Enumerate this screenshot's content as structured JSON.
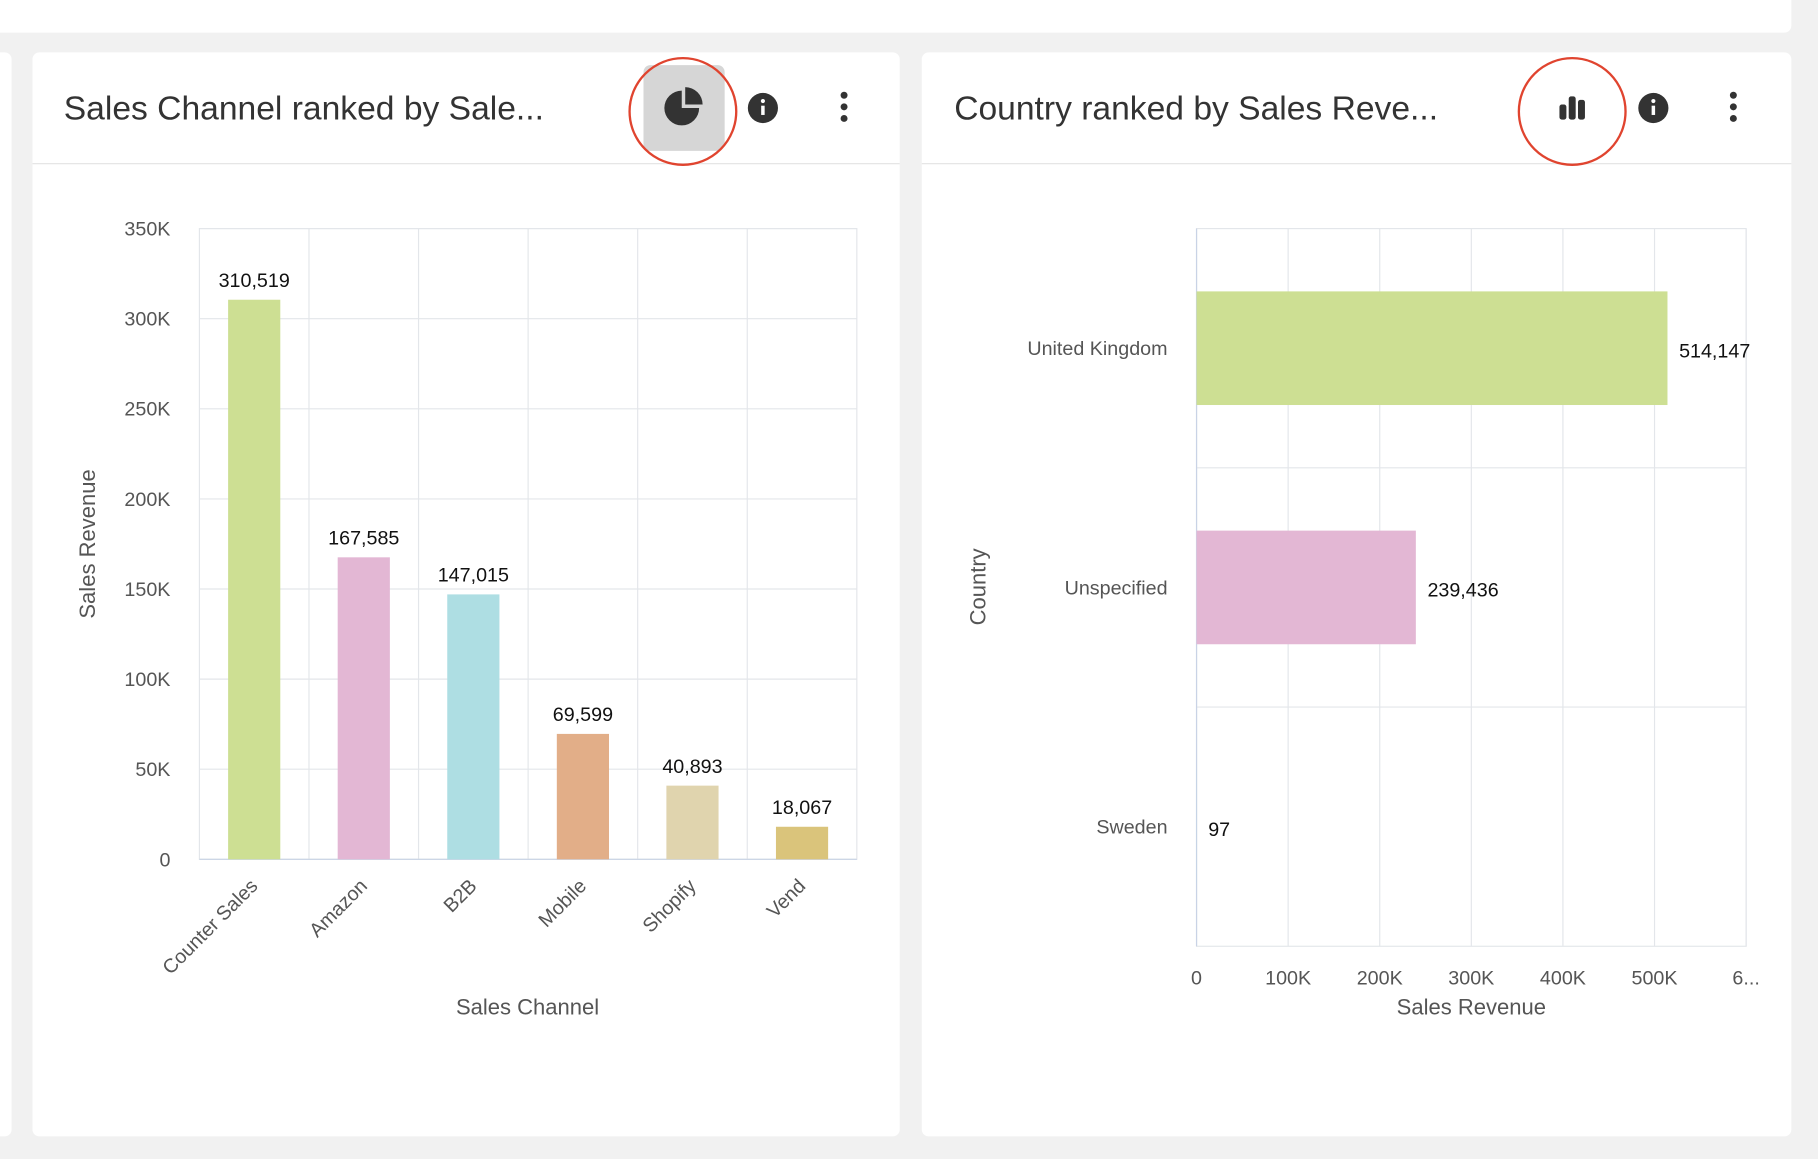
{
  "chart_data": [
    {
      "type": "bar",
      "horizontal": false,
      "title": "Sales Channel ranked by Sale...",
      "x_label": "Sales Channel",
      "y_label": "Sales Revenue",
      "categories": [
        "Counter Sales",
        "Amazon",
        "B2B",
        "Mobile",
        "Shopify",
        "Vend"
      ],
      "values": [
        310519,
        167585,
        147015,
        69599,
        40893,
        18067
      ],
      "value_labels": [
        "310,519",
        "167,585",
        "147,015",
        "69,599",
        "40,893",
        "18,067"
      ],
      "colors": [
        "#cddf93",
        "#e3b7d4",
        "#aedee3",
        "#e2ae88",
        "#e0d4ae",
        "#dac47b"
      ],
      "ylim": [
        0,
        350000
      ],
      "yticks": [
        0,
        {
          "value": 50000,
          "label": "50K"
        },
        {
          "value": 100000,
          "label": "100K"
        },
        {
          "value": 150000,
          "label": "150K"
        },
        {
          "value": 200000,
          "label": "200K"
        },
        {
          "value": 250000,
          "label": "250K"
        },
        {
          "value": 300000,
          "label": "300K"
        },
        {
          "value": 350000,
          "label": "350K"
        }
      ],
      "grid": true
    },
    {
      "type": "bar",
      "horizontal": true,
      "title": "Country ranked by Sales Reve...",
      "x_label": "Sales Revenue",
      "y_label": "Country",
      "categories": [
        "United Kingdom",
        "Unspecified",
        "Sweden"
      ],
      "values": [
        514147,
        239436,
        97
      ],
      "value_labels": [
        "514,147",
        "239,436",
        "97"
      ],
      "colors": [
        "#cddf93",
        "#e3b7d4",
        "#aedee3"
      ],
      "xlim": [
        0,
        600000
      ],
      "xticks": [
        0,
        {
          "value": 100000,
          "label": "100K"
        },
        {
          "value": 200000,
          "label": "200K"
        },
        {
          "value": 300000,
          "label": "300K"
        },
        {
          "value": 400000,
          "label": "400K"
        },
        {
          "value": 500000,
          "label": "500K"
        },
        {
          "value": 600000,
          "label": "6..."
        }
      ],
      "grid": true
    }
  ]
}
